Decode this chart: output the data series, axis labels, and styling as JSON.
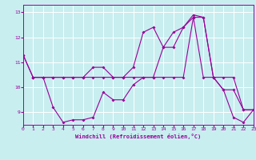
{
  "xlabel": "Windchill (Refroidissement éolien,°C)",
  "bg_color": "#c8eef0",
  "line_color": "#990099",
  "grid_color": "#ffffff",
  "xlim": [
    0,
    23
  ],
  "ylim": [
    8.5,
    13.3
  ],
  "yticks": [
    9,
    10,
    11,
    12,
    13
  ],
  "xticks": [
    0,
    1,
    2,
    3,
    4,
    5,
    6,
    7,
    8,
    9,
    10,
    11,
    12,
    13,
    14,
    15,
    16,
    17,
    18,
    19,
    20,
    21,
    22,
    23
  ],
  "line1_x": [
    0,
    1,
    2,
    3,
    4,
    5,
    6,
    7,
    8,
    9,
    10,
    11,
    12,
    13,
    14,
    15,
    16,
    17,
    18,
    19,
    20,
    21,
    22,
    23
  ],
  "line1_y": [
    11.3,
    10.4,
    10.4,
    9.2,
    8.6,
    8.7,
    8.7,
    8.8,
    9.8,
    9.5,
    9.5,
    10.1,
    10.4,
    10.4,
    11.6,
    12.2,
    12.4,
    12.9,
    12.8,
    10.4,
    9.9,
    8.8,
    8.6,
    9.1
  ],
  "line2_x": [
    1,
    2,
    3,
    4,
    5,
    6,
    7,
    8,
    9,
    10,
    11,
    12,
    13,
    14,
    15,
    16,
    17,
    18,
    19,
    20,
    21,
    22,
    23
  ],
  "line2_y": [
    10.4,
    10.4,
    10.4,
    10.4,
    10.4,
    10.4,
    10.4,
    10.4,
    10.4,
    10.4,
    10.4,
    10.4,
    10.4,
    10.4,
    10.4,
    10.4,
    12.8,
    12.8,
    10.4,
    10.4,
    10.4,
    9.1,
    9.1
  ],
  "line3_x": [
    0,
    1,
    2,
    3,
    4,
    5,
    6,
    7,
    8,
    9,
    10,
    11,
    12,
    13,
    14,
    15,
    16,
    17,
    18,
    19,
    20,
    21,
    22,
    23
  ],
  "line3_y": [
    11.3,
    10.4,
    10.4,
    10.4,
    10.4,
    10.4,
    10.4,
    10.8,
    10.8,
    10.4,
    10.4,
    10.8,
    12.2,
    12.4,
    11.6,
    11.6,
    12.4,
    12.8,
    10.4,
    10.4,
    9.9,
    9.9,
    9.1,
    9.1
  ]
}
